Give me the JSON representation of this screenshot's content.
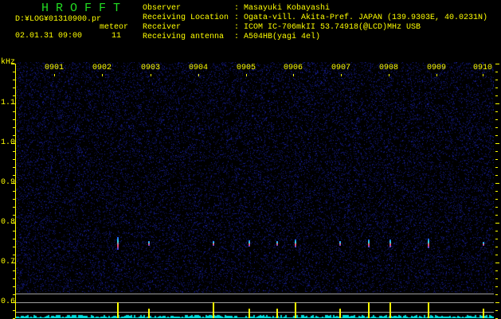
{
  "app_title": "H R O F F T",
  "file_name": "D:¥LOG¥01310900.pr",
  "meteor_label": "meteor",
  "datetime": "02.01.31 09:00",
  "meteor_count": "11",
  "info": [
    {
      "label": "Observer",
      "value": "Masayuki Kobayashi"
    },
    {
      "label": "Receiving Location",
      "value": "Ogata-vill. Akita-Pref. JAPAN (139.9303E, 40.0231N)"
    },
    {
      "label": "Receiver",
      "value": "ICOM IC-706mkII 53.74918(@LCD)MHz USB"
    },
    {
      "label": "Receiving antenna",
      "value": "A504HB(yagi 4el)"
    }
  ],
  "y_unit": "kHz",
  "y_ticks": [
    "1.1",
    "1.0",
    "0.9",
    "0.8",
    "0.7",
    "0.6"
  ],
  "time_ticks": [
    "0901",
    "0902",
    "0903",
    "0904",
    "0905",
    "0906",
    "0907",
    "0908",
    "0909",
    "0910"
  ],
  "colors": {
    "text": "#ffff00",
    "title": "#22dd22",
    "background": "#000000",
    "noise": "#101a70",
    "histogram": "#00e0e0",
    "grid_line": "#a0a0a0"
  }
}
